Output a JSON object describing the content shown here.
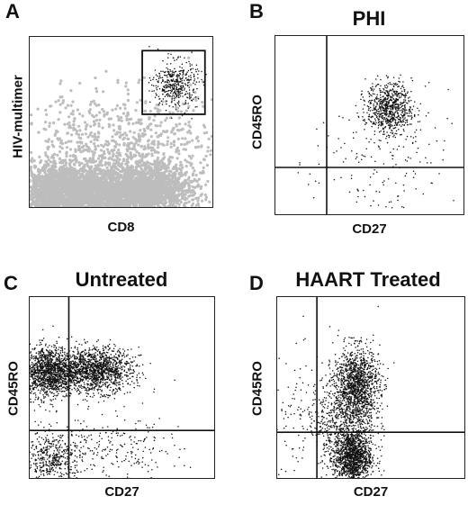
{
  "chart_data": [
    {
      "type": "scatter",
      "panel": "A",
      "title": "",
      "xlabel": "CD8",
      "ylabel": "HIV-multimer",
      "grid": false,
      "gate": {
        "label": "multimer-positive gate",
        "x_range": [
          0.61,
          0.95
        ],
        "y_range": [
          0.55,
          0.92
        ]
      },
      "populations": [
        {
          "name": "",
          "color": "#bdbdbd",
          "center": [
            0.2,
            0.1
          ],
          "spread": [
            0.16,
            0.08
          ],
          "count": 2600
        },
        {
          "name": "",
          "color": "#bdbdbd",
          "center": [
            0.62,
            0.1
          ],
          "spread": [
            0.13,
            0.08
          ],
          "count": 2000
        },
        {
          "name": "",
          "color": "#bdbdbd",
          "center": [
            0.5,
            0.35
          ],
          "spread": [
            0.3,
            0.16
          ],
          "count": 900
        },
        {
          "name": "",
          "color": "#111111",
          "center": [
            0.79,
            0.72
          ],
          "spread": [
            0.06,
            0.07
          ],
          "count": 420
        }
      ]
    },
    {
      "type": "scatter",
      "panel": "B",
      "title": "PHI",
      "xlabel": "CD27",
      "ylabel": "CD45RO",
      "grid": false,
      "quadrant_lines": {
        "x": 0.27,
        "y": 0.27
      },
      "populations": [
        {
          "name": "",
          "color": "#111111",
          "center": [
            0.6,
            0.6
          ],
          "spread": [
            0.06,
            0.07
          ],
          "count": 700
        },
        {
          "name": "",
          "color": "#111111",
          "center": [
            0.55,
            0.3
          ],
          "spread": [
            0.18,
            0.2
          ],
          "count": 180
        }
      ]
    },
    {
      "type": "scatter",
      "panel": "C",
      "title": "Untreated",
      "xlabel": "CD27",
      "ylabel": "CD45RO",
      "grid": false,
      "quadrant_lines": {
        "x": 0.21,
        "y": 0.27
      },
      "populations": [
        {
          "name": "",
          "color": "#111111",
          "center": [
            0.1,
            0.59
          ],
          "spread": [
            0.07,
            0.07
          ],
          "count": 1300
        },
        {
          "name": "",
          "color": "#111111",
          "center": [
            0.35,
            0.6
          ],
          "spread": [
            0.1,
            0.06
          ],
          "count": 1400
        },
        {
          "name": "",
          "color": "#111111",
          "center": [
            0.12,
            0.12
          ],
          "spread": [
            0.08,
            0.07
          ],
          "count": 450
        },
        {
          "name": "",
          "color": "#111111",
          "center": [
            0.45,
            0.15
          ],
          "spread": [
            0.18,
            0.1
          ],
          "count": 250
        }
      ]
    },
    {
      "type": "scatter",
      "panel": "D",
      "title": "HAART Treated",
      "xlabel": "CD27",
      "ylabel": "CD45RO",
      "grid": false,
      "quadrant_lines": {
        "x": 0.21,
        "y": 0.26
      },
      "populations": [
        {
          "name": "",
          "color": "#111111",
          "center": [
            0.42,
            0.52
          ],
          "spread": [
            0.06,
            0.1
          ],
          "count": 1300
        },
        {
          "name": "",
          "color": "#111111",
          "center": [
            0.4,
            0.12
          ],
          "spread": [
            0.05,
            0.07
          ],
          "count": 1200
        },
        {
          "name": "",
          "color": "#111111",
          "center": [
            0.36,
            0.3
          ],
          "spread": [
            0.08,
            0.1
          ],
          "count": 500
        },
        {
          "name": "",
          "color": "#111111",
          "center": [
            0.2,
            0.3
          ],
          "spread": [
            0.15,
            0.18
          ],
          "count": 220
        }
      ]
    }
  ]
}
